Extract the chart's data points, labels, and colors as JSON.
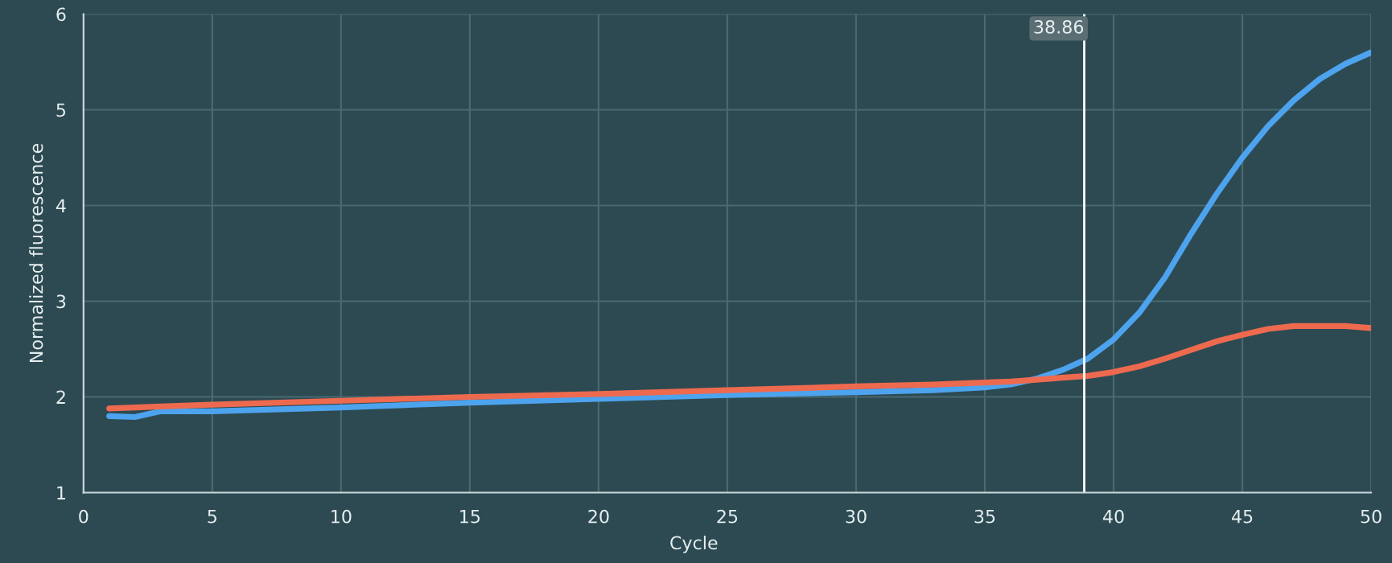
{
  "chart_data": {
    "type": "line",
    "xlabel": "Cycle",
    "ylabel": "Normalized fluorescence",
    "x": [
      1,
      2,
      3,
      5,
      10,
      15,
      20,
      25,
      30,
      33,
      35,
      36,
      37,
      38,
      39,
      40,
      41,
      42,
      43,
      44,
      45,
      46,
      47,
      48,
      49,
      50
    ],
    "series": [
      {
        "color": "#4da3ee",
        "values": [
          1.8,
          1.79,
          1.85,
          1.85,
          1.89,
          1.94,
          1.98,
          2.02,
          2.05,
          2.07,
          2.1,
          2.13,
          2.19,
          2.28,
          2.4,
          2.6,
          2.88,
          3.25,
          3.7,
          4.12,
          4.5,
          4.83,
          5.1,
          5.32,
          5.48,
          5.6
        ]
      },
      {
        "color": "#ee6a4f",
        "values": [
          1.88,
          1.89,
          1.9,
          1.92,
          1.96,
          2.0,
          2.03,
          2.07,
          2.11,
          2.13,
          2.15,
          2.16,
          2.18,
          2.2,
          2.22,
          2.26,
          2.32,
          2.4,
          2.49,
          2.58,
          2.65,
          2.71,
          2.74,
          2.74,
          2.74,
          2.72
        ]
      }
    ],
    "xlim": [
      0,
      50
    ],
    "xticks": [
      0,
      5,
      10,
      15,
      20,
      25,
      30,
      35,
      40,
      45,
      50
    ],
    "ylim": [
      1,
      6
    ],
    "yticks": [
      1,
      2,
      3,
      4,
      5,
      6
    ],
    "ref_lines": [
      {
        "axis": "x",
        "value": 38.86,
        "label": "38.86",
        "color": "#ffffff"
      }
    ],
    "grid": true,
    "marker": "none",
    "line_style": "solid"
  }
}
